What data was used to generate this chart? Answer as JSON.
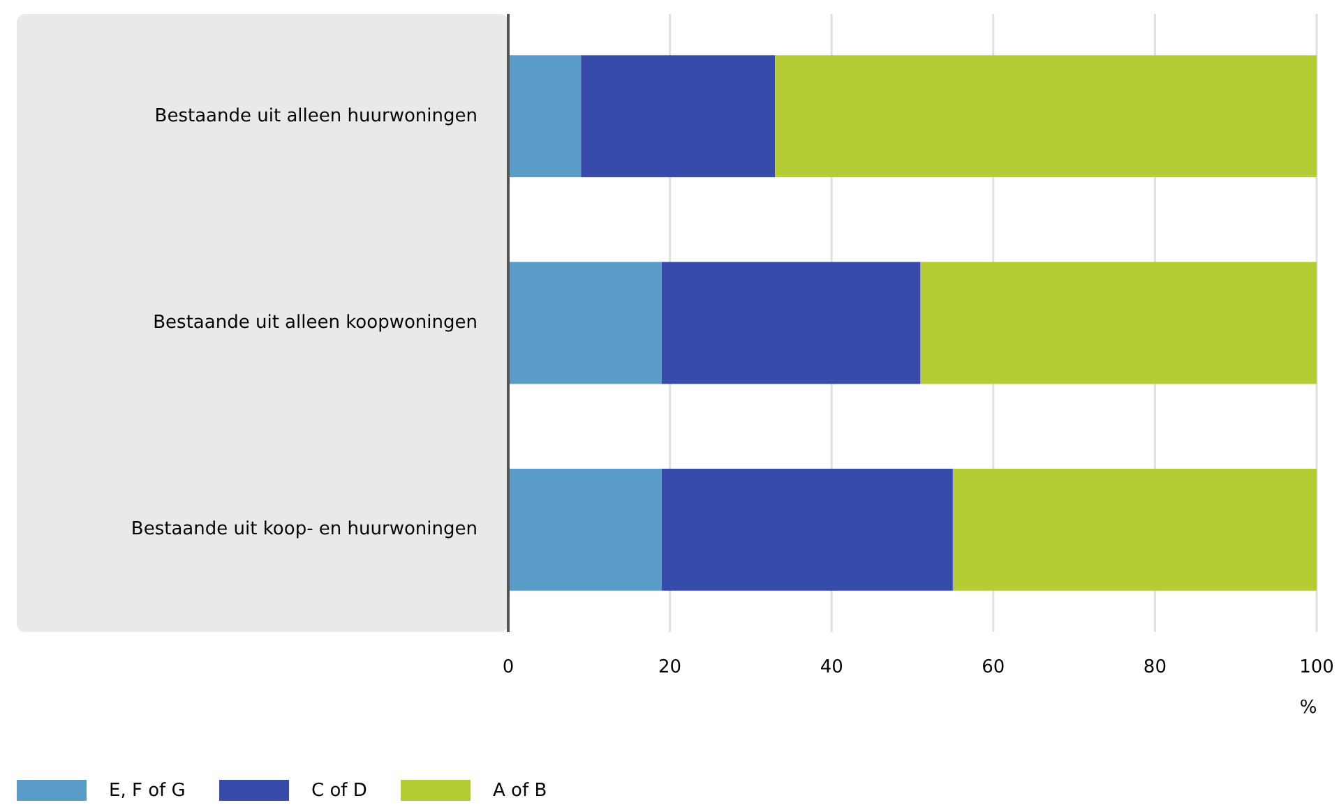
{
  "chart_data": {
    "type": "bar",
    "orientation": "horizontal",
    "stacked": true,
    "xlabel": "%",
    "categories": [
      "Bestaande uit alleen huurwoningen",
      "Bestaande uit alleen koopwoningen",
      "Bestaande uit koop- en huurwoningen"
    ],
    "series": [
      {
        "name": "E, F of G",
        "color": "#5b9bc8",
        "values": [
          9,
          19,
          19
        ]
      },
      {
        "name": "C of D",
        "color": "#374bab",
        "values": [
          24,
          32,
          36
        ]
      },
      {
        "name": "A of B",
        "color": "#b5cc34",
        "values": [
          67,
          49,
          45
        ]
      }
    ],
    "xlim": [
      0,
      100
    ],
    "xticks": [
      0,
      20,
      40,
      60,
      80,
      100
    ],
    "grid": "x",
    "legend": "bottom left"
  }
}
